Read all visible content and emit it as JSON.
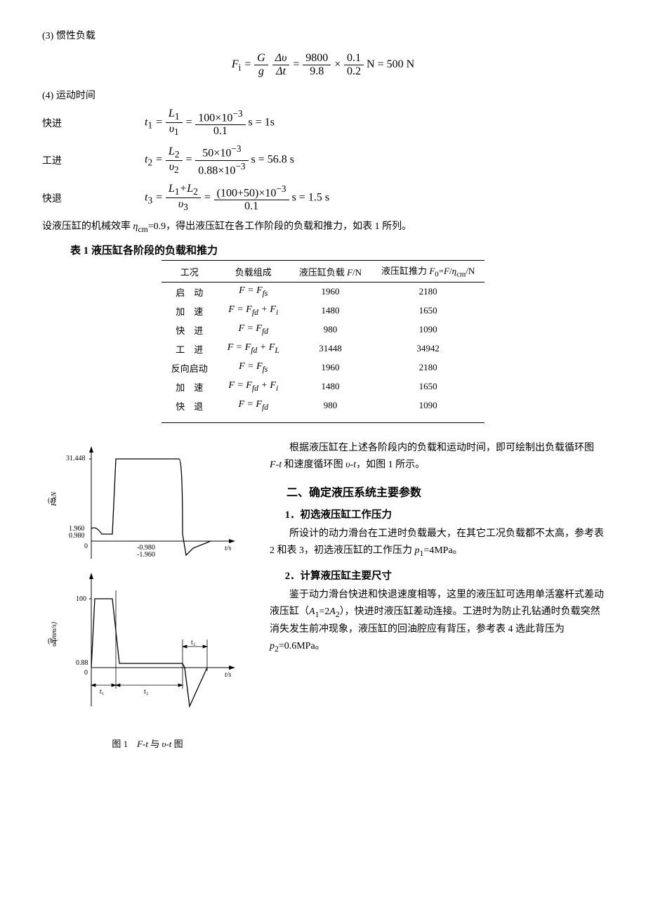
{
  "section3": {
    "title": "(3) 惯性负载",
    "formula": "F_i = (G/g)(Δυ/Δt) = (9800/9.8)×(0.1/0.2) N = 500 N"
  },
  "section4": {
    "title": "(4) 运动时间",
    "rows": [
      {
        "label": "快进",
        "formula": "t₁ = L₁/υ₁ = (100×10⁻³)/0.1 s = 1 s"
      },
      {
        "label": "工进",
        "formula": "t₂ = L₂/υ₂ = (50×10⁻³)/(0.88×10⁻³) s = 56.8 s"
      },
      {
        "label": "快退",
        "formula": "t₃ = (L₁+L₂)/υ₃ = ((100+50)×10⁻³)/0.1 s = 1.5 s"
      }
    ],
    "note": "设液压缸的机械效率 η_cm=0.9，得出液压缸在各工作阶段的负载和推力，如表 1 所列。"
  },
  "table1": {
    "caption": "表 1 液压缸各阶段的负载和推力",
    "headers": [
      "工况",
      "负载组成",
      "液压缸负载 F/N",
      "液压缸推力 F₀=F/η_cm/N"
    ],
    "rows": [
      {
        "phase": "启　动",
        "comp": "F = F_fs",
        "load": "1960",
        "thrust": "2180"
      },
      {
        "phase": "加　速",
        "comp": "F = F_fd + F_i",
        "load": "1480",
        "thrust": "1650"
      },
      {
        "phase": "快　进",
        "comp": "F = F_fd",
        "load": "980",
        "thrust": "1090"
      },
      {
        "phase": "工　进",
        "comp": "F = F_fd + F_L",
        "load": "31448",
        "thrust": "34942"
      },
      {
        "phase": "反向启动",
        "comp": "F = F_fs",
        "load": "1960",
        "thrust": "2180"
      },
      {
        "phase": "加　速",
        "comp": "F = F_fd + F_i",
        "load": "1480",
        "thrust": "1650"
      },
      {
        "phase": "快　退",
        "comp": "F = F_fd",
        "load": "980",
        "thrust": "1090"
      }
    ]
  },
  "figure1": {
    "caption": "图 1　F-t 与 υ-t 图",
    "label_a": "(a)",
    "label_b": "(b)",
    "yaxis_a": "F/kN",
    "yaxis_b": "υ/(mm/s)",
    "xaxis": "t/s",
    "ticks_a": [
      "31.448",
      "1.960",
      "0.980",
      "0",
      "-0.980",
      "-1.960"
    ],
    "ticks_b": [
      "100",
      "0.88",
      "0"
    ],
    "annot": [
      "t₁",
      "t₂",
      "t₃"
    ],
    "colors": {
      "line": "#000000",
      "bg": "#ffffff"
    }
  },
  "rightcol": {
    "intro": "根据液压缸在上述各阶段内的负载和运动时间，即可绘制出负载循环图 F-t  和速度循环图 υ-t，如图 1 所示。",
    "h2": "二、确定液压系统主要参数",
    "s1": {
      "h": "1．初选液压缸工作压力",
      "p": "所设计的动力滑台在工进时负载最大，在其它工况负载都不太高，参考表 2 和表 3，初选液压缸的工作压力 p₁=4MPa。"
    },
    "s2": {
      "h": "2．计算液压缸主要尺寸",
      "p": "鉴于动力滑台快进和快退速度相等，这里的液压缸可选用单活塞杆式差动液压缸（A₁=2A₂），快进时液压缸差动连接。工进时为防止孔钻通时负载突然消失发生前冲现象，液压缸的回油腔应有背压，参考表 4 选此背压为 p₂=0.6MPa。"
    }
  }
}
